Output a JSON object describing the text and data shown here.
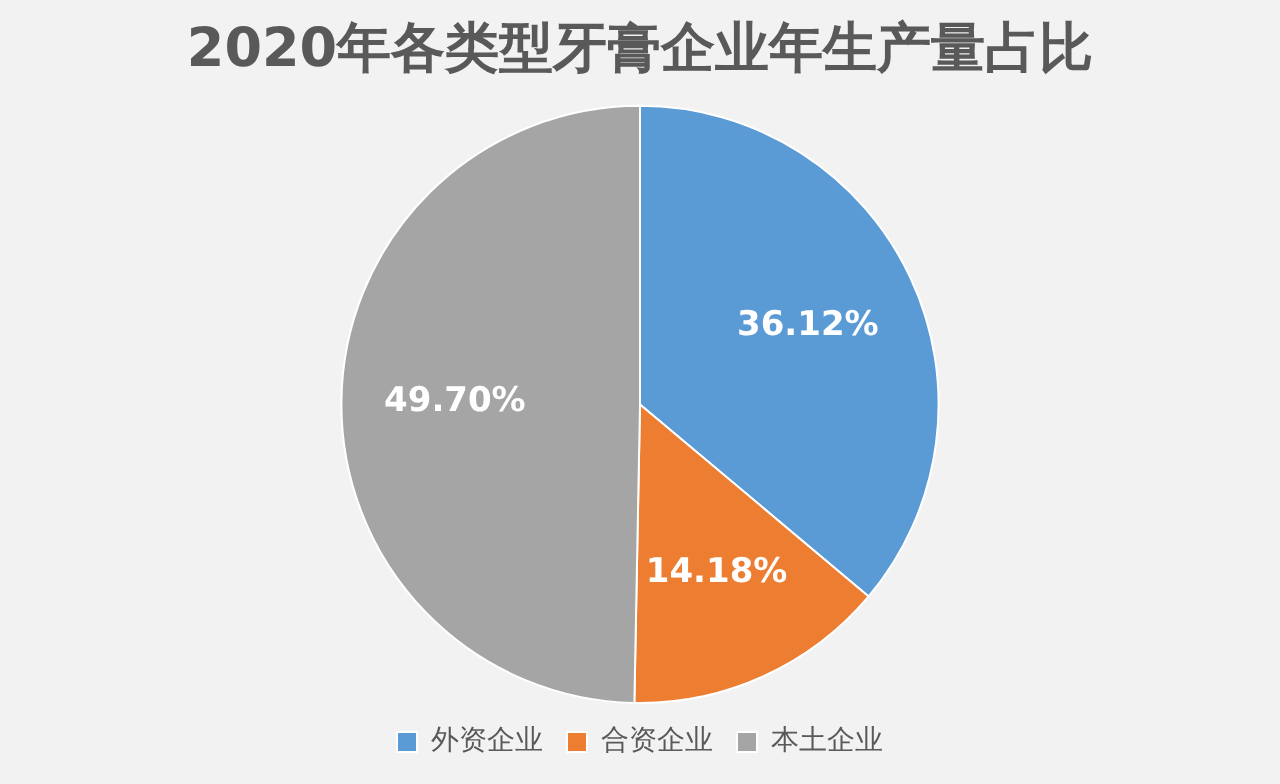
{
  "chart_data": {
    "type": "pie",
    "title": "2020年各类型牙膏企业年生产量占比",
    "categories": [
      "外资企业",
      "合资企业",
      "本土企业"
    ],
    "values": [
      36.12,
      14.18,
      49.7
    ],
    "colors": [
      "#5b9bd5",
      "#ed7d31",
      "#a5a5a5"
    ],
    "value_labels": [
      "36.12%",
      "14.18%",
      "49.70%"
    ],
    "legend": "bottom"
  }
}
